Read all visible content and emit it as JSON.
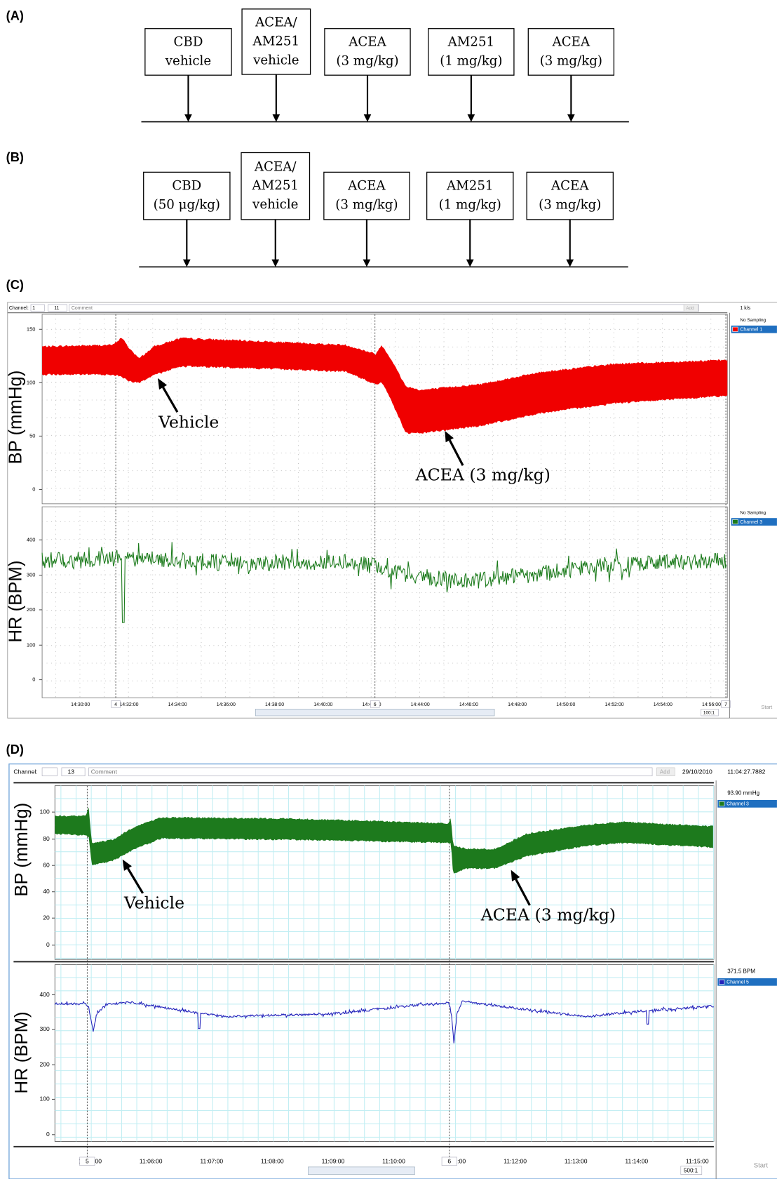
{
  "panel_a": {
    "label": "(A)",
    "boxes": [
      [
        "CBD",
        "vehicle"
      ],
      [
        "ACEA/",
        "AM251",
        "vehicle"
      ],
      [
        "ACEA",
        "(3 mg/kg)"
      ],
      [
        "AM251",
        "(1 mg/kg)"
      ],
      [
        "ACEA",
        "(3 mg/kg)"
      ]
    ]
  },
  "panel_b": {
    "label": "(B)",
    "boxes": [
      [
        "CBD",
        "(50 μg/kg)"
      ],
      [
        "ACEA/",
        "AM251",
        "vehicle"
      ],
      [
        "ACEA",
        "(3 mg/kg)"
      ],
      [
        "AM251",
        "(1 mg/kg)"
      ],
      [
        "ACEA",
        "(3 mg/kg)"
      ]
    ]
  },
  "panel_c": {
    "label": "(C)",
    "toolbar": {
      "channel_label": "Channel:",
      "channel": "1",
      "comment_number": "11",
      "comment": "Comment",
      "add": "Add",
      "rate": "1 k/s"
    },
    "bp": {
      "axis_label": "BP (mmHg)",
      "ticks": [
        "150",
        "100",
        "50",
        "0"
      ],
      "status": "No Sampling",
      "channel": "Channel 1",
      "annotations": [
        "Vehicle",
        "ACEA (3 mg/kg)"
      ]
    },
    "hr": {
      "axis_label": "HR (BPM)",
      "ticks": [
        "400",
        "300",
        "200",
        "100",
        "0"
      ],
      "status": "No Sampling",
      "channel": "Channel 3"
    },
    "time_ticks": [
      "14:30:00",
      "14:32:00",
      "14:34:00",
      "14:36:00",
      "14:38:00",
      "14:40:00",
      "14:42:00",
      "14:44:00",
      "14:46:00",
      "14:48:00",
      "14:50:00",
      "14:52:00",
      "14:54:00",
      "14:56:00"
    ],
    "comment_markers": [
      "4",
      "6",
      "7"
    ],
    "zoom": "100:1",
    "start": "Start"
  },
  "panel_d": {
    "label": "(D)",
    "toolbar": {
      "channel_label": "Channel:",
      "comment_number": "13",
      "comment": "Comment",
      "add": "Add",
      "date": "29/10/2010",
      "time": "11:04:27.7882"
    },
    "bp": {
      "axis_label": "BP (mmHg)",
      "ticks": [
        "100",
        "80",
        "60",
        "40",
        "20",
        "0"
      ],
      "status": "93.90 mmHg",
      "channel": "Channel 3",
      "annotations": [
        "Vehicle",
        "ACEA (3 mg/kg)"
      ]
    },
    "hr": {
      "axis_label": "HR (BPM)",
      "ticks": [
        "400",
        "300",
        "200",
        "100",
        "0"
      ],
      "status": "371.5 BPM",
      "channel": "Channel 5"
    },
    "time_ticks": [
      "11:05:00",
      "11:06:00",
      "11:07:00",
      "11:08:00",
      "11:09:00",
      "11:10:00",
      "11:11:00",
      "11:12:00",
      "11:13:00",
      "11:14:00",
      "11:15:00"
    ],
    "comment_markers": [
      "5",
      "6"
    ],
    "zoom": "500:1",
    "start": "Start"
  }
}
